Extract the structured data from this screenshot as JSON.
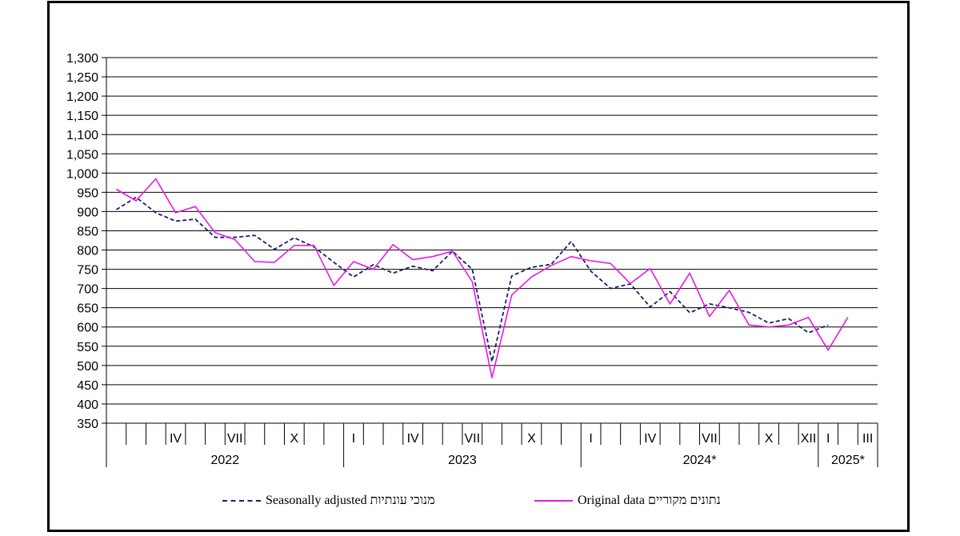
{
  "chart_data": {
    "type": "line",
    "title": "",
    "xlabel": "",
    "ylabel": "",
    "ylim": [
      350,
      1300
    ],
    "yticks": [
      350,
      400,
      450,
      500,
      550,
      600,
      650,
      700,
      750,
      800,
      850,
      900,
      950,
      1000,
      1050,
      1100,
      1150,
      1200,
      1250,
      1300
    ],
    "ytick_labels": [
      "350",
      "400",
      "450",
      "500",
      "550",
      "600",
      "650",
      "700",
      "750",
      "800",
      "850",
      "900",
      "950",
      "1,000",
      "1,050",
      "1,100",
      "1,150",
      "1,200",
      "1,250",
      "1,300"
    ],
    "grid": "horizontal",
    "months": [
      "I-2022",
      "II-2022",
      "III-2022",
      "IV-2022",
      "V-2022",
      "VI-2022",
      "VII-2022",
      "VIII-2022",
      "IX-2022",
      "X-2022",
      "XI-2022",
      "XII-2022",
      "I-2023",
      "II-2023",
      "III-2023",
      "IV-2023",
      "V-2023",
      "VI-2023",
      "VII-2023",
      "VIII-2023",
      "IX-2023",
      "X-2023",
      "XI-2023",
      "XII-2023",
      "I-2024",
      "II-2024",
      "III-2024",
      "IV-2024",
      "V-2024",
      "VI-2024",
      "VII-2024",
      "VIII-2024",
      "IX-2024",
      "X-2024",
      "XI-2024",
      "XII-2024",
      "I-2025",
      "II-2025",
      "III-2025"
    ],
    "month_tick_labels": [
      {
        "month": "IV-2022",
        "label": "IV"
      },
      {
        "month": "VII-2022",
        "label": "VII"
      },
      {
        "month": "X-2022",
        "label": "X"
      },
      {
        "month": "I-2023",
        "label": "I"
      },
      {
        "month": "IV-2023",
        "label": "IV"
      },
      {
        "month": "VII-2023",
        "label": "VII"
      },
      {
        "month": "X-2023",
        "label": "X"
      },
      {
        "month": "I-2024",
        "label": "I"
      },
      {
        "month": "IV-2024",
        "label": "IV"
      },
      {
        "month": "VII-2024",
        "label": "VII"
      },
      {
        "month": "X-2024",
        "label": "X"
      },
      {
        "month": "XII-2024",
        "label": "XII"
      },
      {
        "month": "I-2025",
        "label": "I"
      },
      {
        "month": "III-2025",
        "label": "III"
      }
    ],
    "year_labels": [
      {
        "label": "2022",
        "first": "I-2022",
        "last": "XII-2022"
      },
      {
        "label": "2023",
        "first": "I-2023",
        "last": "XII-2023"
      },
      {
        "label": "2024*",
        "first": "I-2024",
        "last": "XII-2024"
      },
      {
        "label": "2025*",
        "first": "I-2025",
        "last": "III-2025"
      }
    ],
    "series": [
      {
        "name": "Seasonally adjusted מנוכי עונתיות",
        "color": "#1a1f6e",
        "dash": "dashed",
        "values": [
          905,
          937,
          897,
          875,
          880,
          833,
          833,
          838,
          802,
          832,
          808,
          768,
          730,
          762,
          740,
          758,
          746,
          797,
          750,
          510,
          733,
          755,
          763,
          822,
          745,
          700,
          712,
          652,
          692,
          637,
          660,
          650,
          638,
          610,
          622,
          585,
          605,
          null,
          null
        ]
      },
      {
        "name": "Original data נתונים מקוריים",
        "color": "#e619e6",
        "dash": "solid",
        "values": [
          958,
          928,
          985,
          897,
          913,
          845,
          827,
          770,
          768,
          812,
          812,
          708,
          770,
          750,
          814,
          775,
          783,
          797,
          718,
          468,
          683,
          730,
          760,
          783,
          772,
          765,
          713,
          752,
          660,
          740,
          627,
          695,
          605,
          600,
          605,
          625,
          540,
          625,
          null
        ]
      }
    ],
    "legend": {
      "placement": "bottom",
      "seasonally_adjusted": "Seasonally adjusted מנוכי עונתיות",
      "original": "Original data נתונים מקוריים"
    }
  }
}
